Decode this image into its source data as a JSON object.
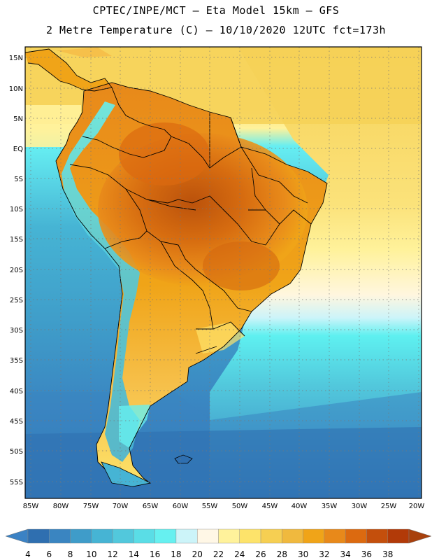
{
  "header": {
    "line1": "CPTEC/INPE/MCT –  Eta Model 15km – GFS",
    "line2": "2 Metre Temperature (C) – 10/10/2020 12UTC fct=173h"
  },
  "map": {
    "lat_labels": [
      "15N",
      "10N",
      "5N",
      "EQ",
      "5S",
      "10S",
      "15S",
      "20S",
      "25S",
      "30S",
      "35S",
      "40S",
      "45S",
      "50S",
      "55S"
    ],
    "lon_labels": [
      "85W",
      "80W",
      "75W",
      "70W",
      "65W",
      "60W",
      "55W",
      "50W",
      "45W",
      "40W",
      "35W",
      "30W",
      "25W",
      "20W"
    ],
    "extent": {
      "lon_min": -86,
      "lon_max": -20,
      "lat_min": -58,
      "lat_max": 16
    }
  },
  "colorbar": {
    "labels": [
      "4",
      "6",
      "8",
      "10",
      "12",
      "14",
      "16",
      "18",
      "20",
      "22",
      "24",
      "26",
      "28",
      "30",
      "32",
      "34",
      "36",
      "38"
    ],
    "colors": [
      "#3b82c4",
      "#2f6fb0",
      "#3a85c1",
      "#3f9cc9",
      "#46b4d4",
      "#52c8dc",
      "#5adde6",
      "#66f0f0",
      "#ccf4f9",
      "#fff7e6",
      "#fff29b",
      "#fde36a",
      "#f6cf52",
      "#f0b93e",
      "#f0a418",
      "#e8891a",
      "#dc6a10",
      "#c44f0c",
      "#b23a08",
      "#a8400c"
    ]
  }
}
